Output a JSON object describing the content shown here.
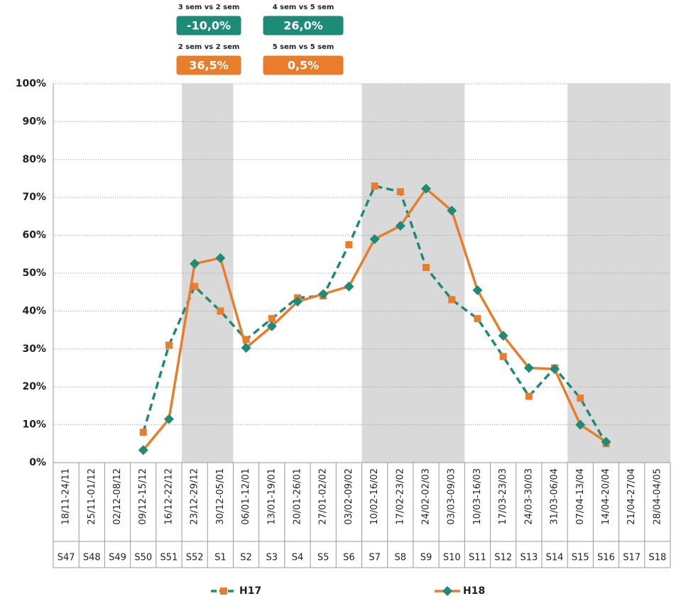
{
  "chart_data": {
    "type": "line",
    "categories": [
      "18/11-24/11",
      "25/11-01/12",
      "02/12-08/12",
      "09/12-15/12",
      "16/12-22/12",
      "23/12-29/12",
      "30/12-05/01",
      "06/01-12/01",
      "13/01-19/01",
      "20/01-26/01",
      "27/01-02/02",
      "03/02-09/02",
      "10/02-16/02",
      "17/02-23/02",
      "24/02-02/03",
      "03/03-09/03",
      "10/03-16/03",
      "17/03-23/03",
      "24/03-30/03",
      "31/03-06/04",
      "07/04-13/04",
      "14/04-20/04",
      "21/04-27/04",
      "28/04-04/05"
    ],
    "weeks": [
      "S47",
      "S48",
      "S49",
      "S50",
      "S51",
      "S52",
      "S1",
      "S2",
      "S3",
      "S4",
      "S5",
      "S6",
      "S7",
      "S8",
      "S9",
      "S10",
      "S11",
      "S12",
      "S13",
      "S14",
      "S15",
      "S16",
      "S17",
      "S18"
    ],
    "series": [
      {
        "name": "H17",
        "color": "#1e8a78",
        "marker_color": "#e87d2c",
        "line": "dashed",
        "marker": "square",
        "values": [
          null,
          null,
          null,
          8,
          31,
          46.5,
          40,
          32.5,
          38,
          43.5,
          44,
          57.5,
          73,
          71.5,
          51.5,
          43,
          38,
          28,
          17.5,
          25,
          17,
          5,
          null,
          null
        ]
      },
      {
        "name": "H18",
        "color": "#e87d2c",
        "marker_color": "#1e8a78",
        "line": "solid",
        "marker": "diamond",
        "values": [
          null,
          null,
          null,
          3.3,
          11.5,
          52.5,
          54,
          30.3,
          36,
          42.5,
          44.5,
          46.5,
          59,
          62.5,
          72.3,
          66.5,
          45.5,
          33.5,
          25,
          24.7,
          10,
          5.5,
          null,
          null
        ]
      }
    ],
    "highlight_bands": [
      [
        5,
        6
      ],
      [
        12,
        15
      ],
      [
        20,
        23
      ]
    ],
    "highlight_color": "#d9d9d9",
    "ylim": [
      0,
      100
    ],
    "yticks": [
      {
        "value": 0,
        "label": "0%"
      },
      {
        "value": 10,
        "label": "10%"
      },
      {
        "value": 20,
        "label": "20%"
      },
      {
        "value": 30,
        "label": "30%"
      },
      {
        "value": 40,
        "label": "40%"
      },
      {
        "value": 50,
        "label": "50%"
      },
      {
        "value": 60,
        "label": "60%"
      },
      {
        "value": 70,
        "label": "70%"
      },
      {
        "value": 80,
        "label": "80%"
      },
      {
        "value": 90,
        "label": "90%"
      },
      {
        "value": 100,
        "label": "100%"
      }
    ],
    "grid": true,
    "annotations": [
      {
        "title": "3 sem vs 2 sem",
        "value": -10,
        "value_label": "-10,0%",
        "color": "#1e8a78"
      },
      {
        "title": "4 sem vs 5 sem",
        "value": 26,
        "value_label": "26,0%",
        "color": "#1e8a78"
      },
      {
        "title": "2 sem vs 2 sem",
        "value": 36.5,
        "value_label": "36,5%",
        "color": "#e87d2c"
      },
      {
        "title": "5 sem vs 5 sem",
        "value": 0.5,
        "value_label": "0,5%",
        "color": "#e87d2c"
      }
    ]
  }
}
